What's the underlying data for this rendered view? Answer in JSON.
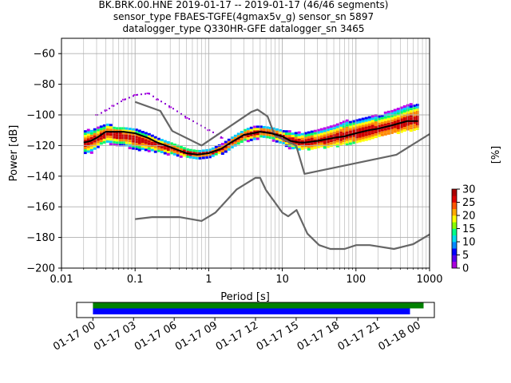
{
  "title_lines": [
    "BK.BRK.00.HNE   2019-01-17 -- 2019-01-17  (46/46 segments)",
    "sensor_type FBAES-TGFE(4gmax5v_g) sensor_sn 5897",
    "datalogger_type Q330HR-GFE datalogger_sn 3465"
  ],
  "chart_data": [
    {
      "type": "heatmap",
      "title": "BK.BRK.00.HNE   2019-01-17 -- 2019-01-17  (46/46 segments)",
      "xlabel": "Period [s]",
      "ylabel": "Power [dB]",
      "xscale": "log",
      "xlim": [
        0.01,
        1000
      ],
      "ylim": [
        -200,
        -50
      ],
      "x_ticks": [
        {
          "value": 0.01,
          "label": "0.01"
        },
        {
          "value": 0.1,
          "label": "0.1"
        },
        {
          "value": 1,
          "label": "1"
        },
        {
          "value": 10,
          "label": "10"
        },
        {
          "value": 100,
          "label": "100"
        },
        {
          "value": 1000,
          "label": "1000"
        }
      ],
      "y_ticks": [
        {
          "value": -60,
          "label": "−60"
        },
        {
          "value": -80,
          "label": "−80"
        },
        {
          "value": -100,
          "label": "−100"
        },
        {
          "value": -120,
          "label": "−120"
        },
        {
          "value": -140,
          "label": "−140"
        },
        {
          "value": -160,
          "label": "−160"
        },
        {
          "value": -180,
          "label": "−180"
        },
        {
          "value": -200,
          "label": "−200"
        }
      ],
      "grid": true,
      "colorbar": {
        "label": "[%]",
        "range": [
          0,
          30
        ],
        "ticks": [
          {
            "value": 0,
            "label": "0"
          },
          {
            "value": 5,
            "label": "5"
          },
          {
            "value": 10,
            "label": "10"
          },
          {
            "value": 15,
            "label": "15"
          },
          {
            "value": 20,
            "label": "20"
          },
          {
            "value": 25,
            "label": "25"
          },
          {
            "value": 30,
            "label": "30"
          }
        ],
        "colors": [
          "#ffffff",
          "#bb00ee",
          "#0000ff",
          "#00ccff",
          "#00ff66",
          "#ffff00",
          "#ff8800",
          "#cc0000"
        ]
      },
      "mode_curve": {
        "x": [
          0.02,
          0.025,
          0.03,
          0.04,
          0.05,
          0.07,
          0.1,
          0.15,
          0.2,
          0.3,
          0.5,
          0.7,
          1,
          1.5,
          2,
          3,
          4,
          5,
          7,
          10,
          13,
          17,
          20,
          30,
          50,
          70,
          100,
          150,
          200,
          300,
          500,
          700
        ],
        "y": [
          -118,
          -117,
          -115,
          -111,
          -111,
          -111,
          -112,
          -115,
          -118,
          -121,
          -125,
          -126,
          -125,
          -122,
          -118,
          -113,
          -112,
          -111,
          -112,
          -114,
          -117,
          -118,
          -118,
          -117,
          -115,
          -114,
          -112,
          -110,
          -109,
          -107,
          -104,
          -104
        ]
      },
      "nhnm": {
        "x": [
          0.1,
          0.22,
          0.32,
          0.8,
          3.8,
          4.6,
          6.3,
          7.9,
          15.4,
          20,
          354.8,
          1000
        ],
        "y": [
          -91.5,
          -97.4,
          -110.5,
          -120,
          -98,
          -96.5,
          -101,
          -113.5,
          -120,
          -138.5,
          -126,
          -112.5
        ]
      },
      "nlnm": {
        "x": [
          0.1,
          0.17,
          0.4,
          0.8,
          1.24,
          2.4,
          4.3,
          5,
          6,
          10,
          12,
          15.6,
          21.9,
          31.6,
          45,
          70,
          101,
          154,
          328,
          600,
          1000
        ],
        "y": [
          -168,
          -166.7,
          -166.7,
          -169.2,
          -163.7,
          -148.6,
          -141.1,
          -141.1,
          -149,
          -163.8,
          -166.2,
          -162.1,
          -177.5,
          -185,
          -187.5,
          -187.5,
          -185,
          -185,
          -187.5,
          -184.4,
          -178
        ]
      },
      "heat_columns": [
        {
          "x": 0.02,
          "y_min": -126,
          "y_max": -110,
          "center": -118
        },
        {
          "x": 0.025,
          "y_min": -124,
          "y_max": -108,
          "center": -117
        },
        {
          "x": 0.03,
          "y_min": -120,
          "y_max": -106,
          "center": -115
        },
        {
          "x": 0.04,
          "y_min": -118,
          "y_max": -104,
          "center": -112
        },
        {
          "x": 0.05,
          "y_min": -122,
          "y_max": -108,
          "center": -113
        },
        {
          "x": 0.07,
          "y_min": -122,
          "y_max": -108,
          "center": -114
        },
        {
          "x": 0.1,
          "y_min": -124,
          "y_max": -109,
          "center": -116
        },
        {
          "x": 0.15,
          "y_min": -124,
          "y_max": -112,
          "center": -118
        },
        {
          "x": 0.2,
          "y_min": -125,
          "y_max": -115,
          "center": -120
        },
        {
          "x": 0.3,
          "y_min": -127,
          "y_max": -118,
          "center": -122
        },
        {
          "x": 0.5,
          "y_min": -129,
          "y_max": -122,
          "center": -125
        },
        {
          "x": 0.7,
          "y_min": -129,
          "y_max": -123,
          "center": -126
        },
        {
          "x": 1,
          "y_min": -128,
          "y_max": -122,
          "center": -125
        },
        {
          "x": 1.5,
          "y_min": -125,
          "y_max": -118,
          "center": -122
        },
        {
          "x": 2,
          "y_min": -122,
          "y_max": -114,
          "center": -118
        },
        {
          "x": 3,
          "y_min": -118,
          "y_max": -109,
          "center": -113
        },
        {
          "x": 4,
          "y_min": -116,
          "y_max": -107,
          "center": -112
        },
        {
          "x": 5,
          "y_min": -115,
          "y_max": -107,
          "center": -111
        },
        {
          "x": 7,
          "y_min": -117,
          "y_max": -108,
          "center": -112
        },
        {
          "x": 10,
          "y_min": -120,
          "y_max": -110,
          "center": -115
        },
        {
          "x": 13,
          "y_min": -122,
          "y_max": -110,
          "center": -117
        },
        {
          "x": 17,
          "y_min": -122,
          "y_max": -109,
          "center": -118
        },
        {
          "x": 20,
          "y_min": -122,
          "y_max": -108,
          "center": -118
        },
        {
          "x": 30,
          "y_min": -121,
          "y_max": -106,
          "center": -117
        },
        {
          "x": 50,
          "y_min": -120,
          "y_max": -103,
          "center": -115
        },
        {
          "x": 70,
          "y_min": -119,
          "y_max": -100,
          "center": -113
        },
        {
          "x": 100,
          "y_min": -117,
          "y_max": -98,
          "center": -112
        },
        {
          "x": 150,
          "y_min": -115,
          "y_max": -96,
          "center": -110
        },
        {
          "x": 200,
          "y_min": -113,
          "y_max": -94,
          "center": -109
        },
        {
          "x": 300,
          "y_min": -112,
          "y_max": -92,
          "center": -107
        },
        {
          "x": 500,
          "y_min": -110,
          "y_max": -88,
          "center": -104
        },
        {
          "x": 700,
          "y_min": -108,
          "y_max": -86,
          "center": -103
        }
      ],
      "outlier_curve": {
        "x": [
          0.03,
          0.04,
          0.05,
          0.07,
          0.1,
          0.15,
          0.2,
          0.3,
          0.5,
          1,
          1.5
        ],
        "y": [
          -100,
          -97,
          -94,
          -90,
          -87,
          -86,
          -90,
          -95,
          -102,
          -110,
          -115
        ]
      }
    },
    {
      "type": "timeline",
      "x_labels": [
        "01-17 00",
        "01-17 03",
        "01-17 06",
        "01-17 09",
        "01-17 12",
        "01-17 15",
        "01-17 18",
        "01-17 21",
        "01-18 00"
      ],
      "x_range_hours": [
        -1.2,
        25.2
      ],
      "bars": [
        {
          "name": "",
          "start_h": 0,
          "end_h": 24.4,
          "color": "#008000"
        },
        {
          "name": "",
          "start_h": 0,
          "end_h": 23.4,
          "color": "#0000ff"
        }
      ]
    }
  ]
}
